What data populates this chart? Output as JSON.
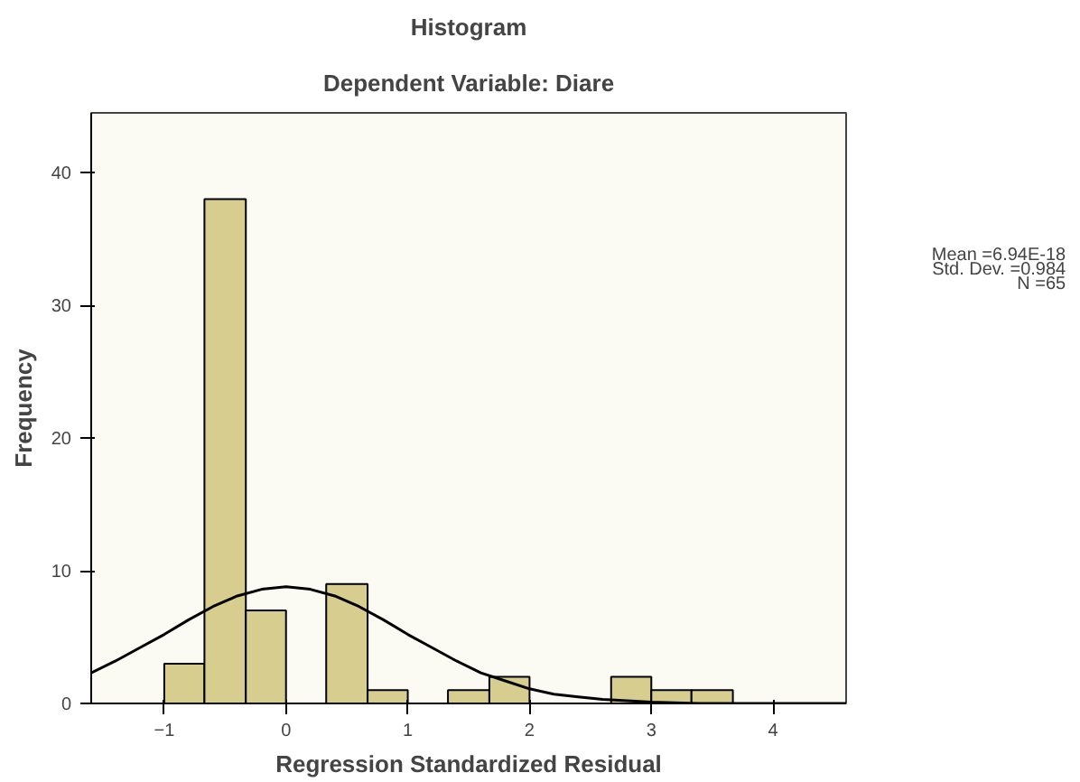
{
  "chart_data": {
    "type": "histogram",
    "title": "Histogram",
    "subtitle": "Dependent Variable: Diare",
    "xlabel": "Regression Standardized Residual",
    "ylabel": "Frequency",
    "bins": [
      -1,
      -0.67,
      -0.33,
      0,
      0.33,
      0.67,
      1,
      1.33,
      1.67,
      2,
      2.67,
      3,
      3.33,
      3.67
    ],
    "values": [
      3,
      38,
      7,
      0,
      9,
      1,
      0,
      1,
      2,
      0,
      2,
      1,
      1
    ],
    "color": "#d6cd8e",
    "series": [
      {
        "type": "line",
        "color": "#000000",
        "x": [
          -1.6,
          -1.4,
          -1.2,
          -1.0,
          -0.8,
          -0.6,
          -0.4,
          -0.2,
          0,
          0.2,
          0.4,
          0.6,
          0.8,
          1.0,
          1.2,
          1.4,
          1.6,
          1.8,
          2.0,
          2.2,
          2.4,
          2.6,
          2.8,
          3.0,
          3.4,
          3.8,
          4.2,
          4.6
        ],
        "values": [
          2.3,
          3.2,
          4.2,
          5.2,
          6.3,
          7.3,
          8.1,
          8.6,
          8.8,
          8.6,
          8.1,
          7.3,
          6.3,
          5.2,
          4.2,
          3.2,
          2.3,
          1.7,
          1.1,
          0.7,
          0.5,
          0.3,
          0.2,
          0.1,
          0,
          0,
          0,
          0
        ]
      }
    ],
    "annotations": [
      "Mean =6.94E-18",
      "Std. Dev. =0.984",
      "N =65"
    ],
    "xlim": [
      -1.6,
      4.6
    ],
    "ylim": [
      0,
      44.5
    ],
    "xticks": [
      -1,
      0,
      1,
      2,
      3,
      4
    ],
    "yticks": [
      0,
      10,
      20,
      30,
      40
    ],
    "grid": false
  }
}
